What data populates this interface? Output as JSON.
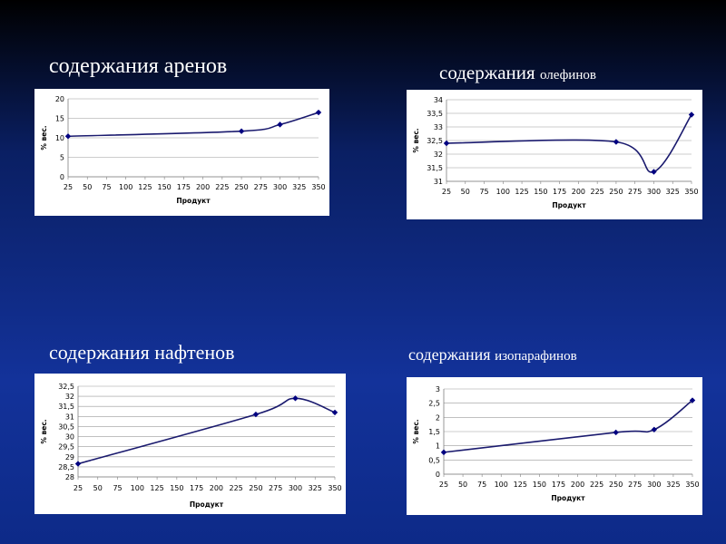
{
  "headings": {
    "arenes": "содержания аренов",
    "olefins_main": "содержания",
    "olefins_sub": "олефинов",
    "naphthenes": "содержания нафтенов",
    "isoparaffins_main": "содержания",
    "isoparaffins_sub": "изопарафинов"
  },
  "colors": {
    "line": "#1a1a6e",
    "marker": "#000080",
    "grid": "#9a9a9a"
  },
  "chart_data": [
    {
      "type": "line",
      "title": "содержания аренов",
      "xlabel": "Продукт",
      "ylabel": "% вес.",
      "categories": [
        "25",
        "50",
        "75",
        "100",
        "125",
        "150",
        "175",
        "200",
        "225",
        "250",
        "275",
        "300",
        "325",
        "350"
      ],
      "xlim": [
        25,
        350
      ],
      "ylim": [
        0,
        20
      ],
      "yticks": [
        "0",
        "5",
        "10",
        "15",
        "20"
      ],
      "grid": true,
      "series": [
        {
          "x": [
            25,
            250,
            300,
            350
          ],
          "y": [
            10.4,
            11.7,
            13.4,
            16.5
          ]
        }
      ]
    },
    {
      "type": "line",
      "title": "содержания олефинов",
      "xlabel": "Продукт",
      "ylabel": "% вес.",
      "categories": [
        "25",
        "50",
        "75",
        "100",
        "125",
        "150",
        "175",
        "200",
        "225",
        "250",
        "275",
        "300",
        "325",
        "350"
      ],
      "xlim": [
        25,
        350
      ],
      "ylim": [
        31,
        34
      ],
      "yticks": [
        "31",
        "31,5",
        "32",
        "32,5",
        "33",
        "33,5",
        "34"
      ],
      "grid": true,
      "series": [
        {
          "x": [
            25,
            250,
            300,
            350
          ],
          "y": [
            32.4,
            32.45,
            31.35,
            33.45
          ]
        }
      ]
    },
    {
      "type": "line",
      "title": "содержания нафтенов",
      "xlabel": "Продукт",
      "ylabel": "% вес.",
      "categories": [
        "25",
        "50",
        "75",
        "100",
        "125",
        "150",
        "175",
        "200",
        "225",
        "250",
        "275",
        "300",
        "325",
        "350"
      ],
      "xlim": [
        25,
        350
      ],
      "ylim": [
        28,
        32.5
      ],
      "yticks": [
        "28",
        "28,5",
        "29",
        "29,5",
        "30",
        "30,5",
        "31",
        "31,5",
        "32",
        "32,5"
      ],
      "grid": true,
      "series": [
        {
          "x": [
            25,
            250,
            300,
            350
          ],
          "y": [
            28.65,
            31.1,
            31.9,
            31.2
          ]
        }
      ]
    },
    {
      "type": "line",
      "title": "содержания изопарафинов",
      "xlabel": "Продукт",
      "ylabel": "% вес.",
      "categories": [
        "25",
        "50",
        "75",
        "100",
        "125",
        "150",
        "175",
        "200",
        "225",
        "250",
        "275",
        "300",
        "325",
        "350"
      ],
      "xlim": [
        25,
        350
      ],
      "ylim": [
        0,
        3
      ],
      "yticks": [
        "0",
        "0,5",
        "1",
        "1,5",
        "2",
        "2,5",
        "3"
      ],
      "grid": true,
      "series": [
        {
          "x": [
            25,
            250,
            300,
            350
          ],
          "y": [
            0.77,
            1.47,
            1.57,
            2.6
          ]
        }
      ]
    }
  ]
}
